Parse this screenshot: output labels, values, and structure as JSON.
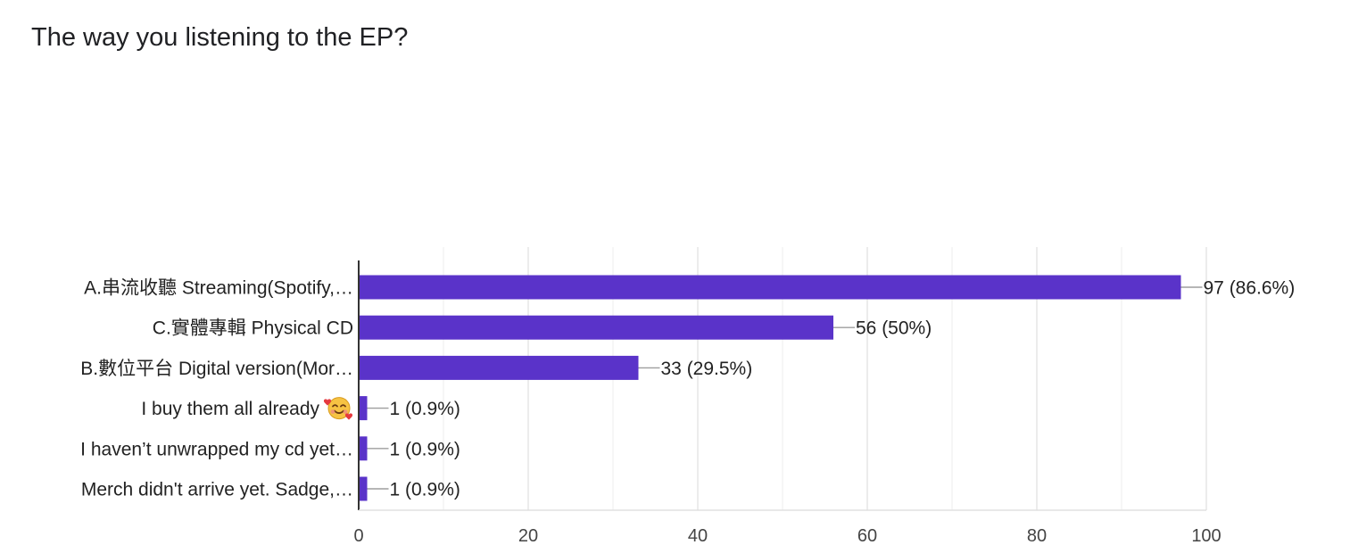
{
  "chart_data": {
    "type": "bar",
    "orientation": "horizontal",
    "title": "The way you listening to the EP?",
    "categories": [
      "A.串流收聽 Streaming(Spotify,…",
      "C.實體專輯 Physical CD",
      "B.數位平台 Digital version(Mor…",
      "I buy them all already",
      "I haven’t unwrapped my cd yet…",
      "Merch didn't arrive yet. Sadge,…"
    ],
    "values": [
      97,
      56,
      33,
      1,
      1,
      1
    ],
    "value_labels": [
      "97 (86.6%)",
      "56 (50%)",
      "33 (29.5%)",
      "1 (0.9%)",
      "1 (0.9%)",
      "1 (0.9%)"
    ],
    "category_icons": [
      "",
      "",
      "",
      "smiling-face-with-hearts-icon",
      "",
      ""
    ],
    "xlim": [
      0,
      100
    ],
    "xticks": [
      0,
      20,
      40,
      60,
      80,
      100
    ],
    "grid": true,
    "bar_color": "#5a33c9"
  }
}
